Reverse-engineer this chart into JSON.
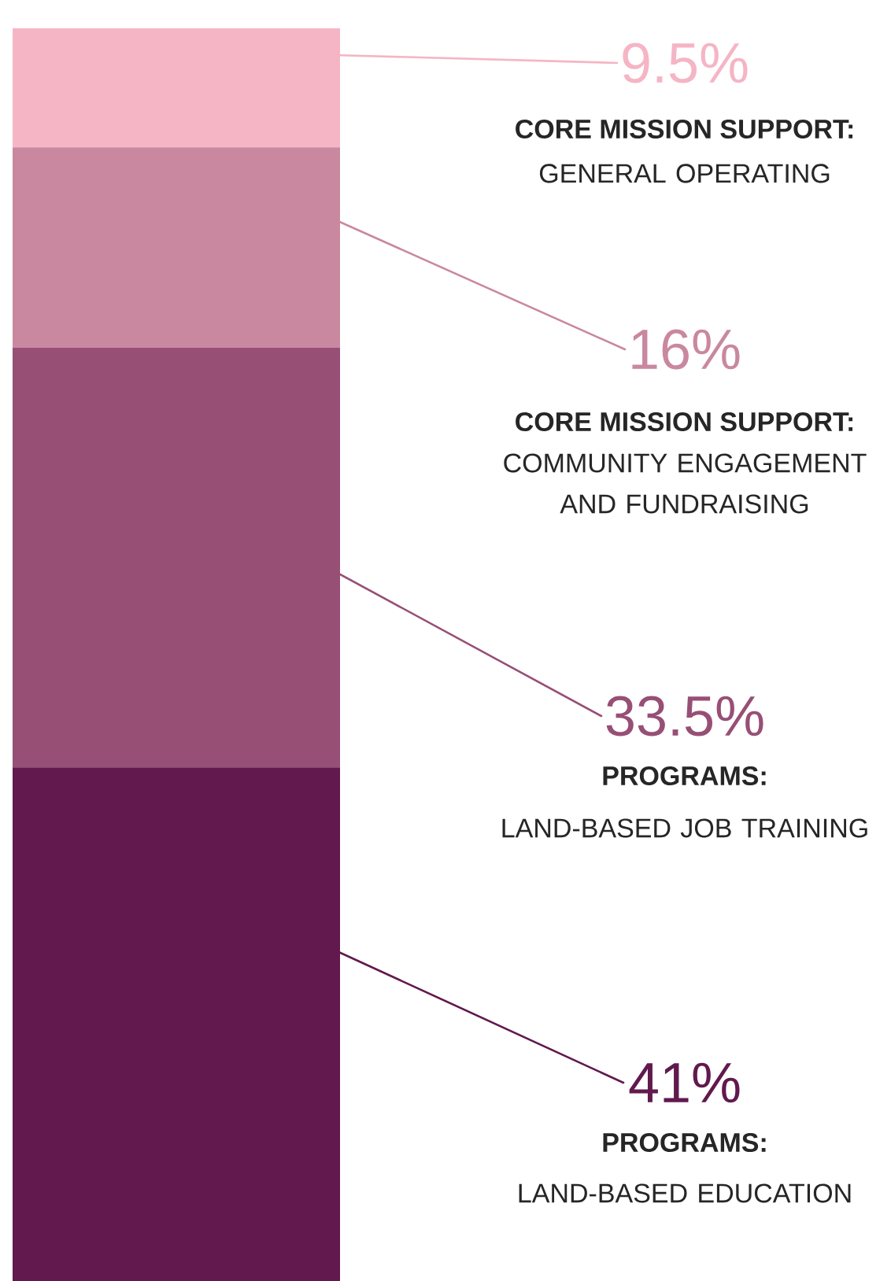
{
  "chart_data": {
    "type": "bar",
    "stacked": true,
    "categories": [
      null
    ],
    "tick_labels": false,
    "series": [
      {
        "name": "PROGRAMS:",
        "color": "#61194e",
        "values": [
          41
        ],
        "value_labels": [
          "41%"
        ]
      },
      {
        "name": "PROGRAMS:",
        "color": "#974f75",
        "values": [
          33.5
        ],
        "value_labels": [
          "33.5%"
        ]
      },
      {
        "name": "CORE MISSION SUPPORT:",
        "color": "#c9889f",
        "values": [
          16
        ],
        "value_labels": [
          "16%"
        ]
      },
      {
        "name": "CORE MISSION SUPPORT:",
        "color": "#f5b5c4",
        "values": [
          9.5
        ],
        "value_labels": [
          "9.5%"
        ]
      }
    ],
    "annotations": [
      "LAND-BASED EDUCATION",
      "LAND-BASED JOB TRAINING",
      "COMMUNITY ENGAGEMENT AND FUNDRAISING",
      "GENERAL OPERATING"
    ]
  }
}
